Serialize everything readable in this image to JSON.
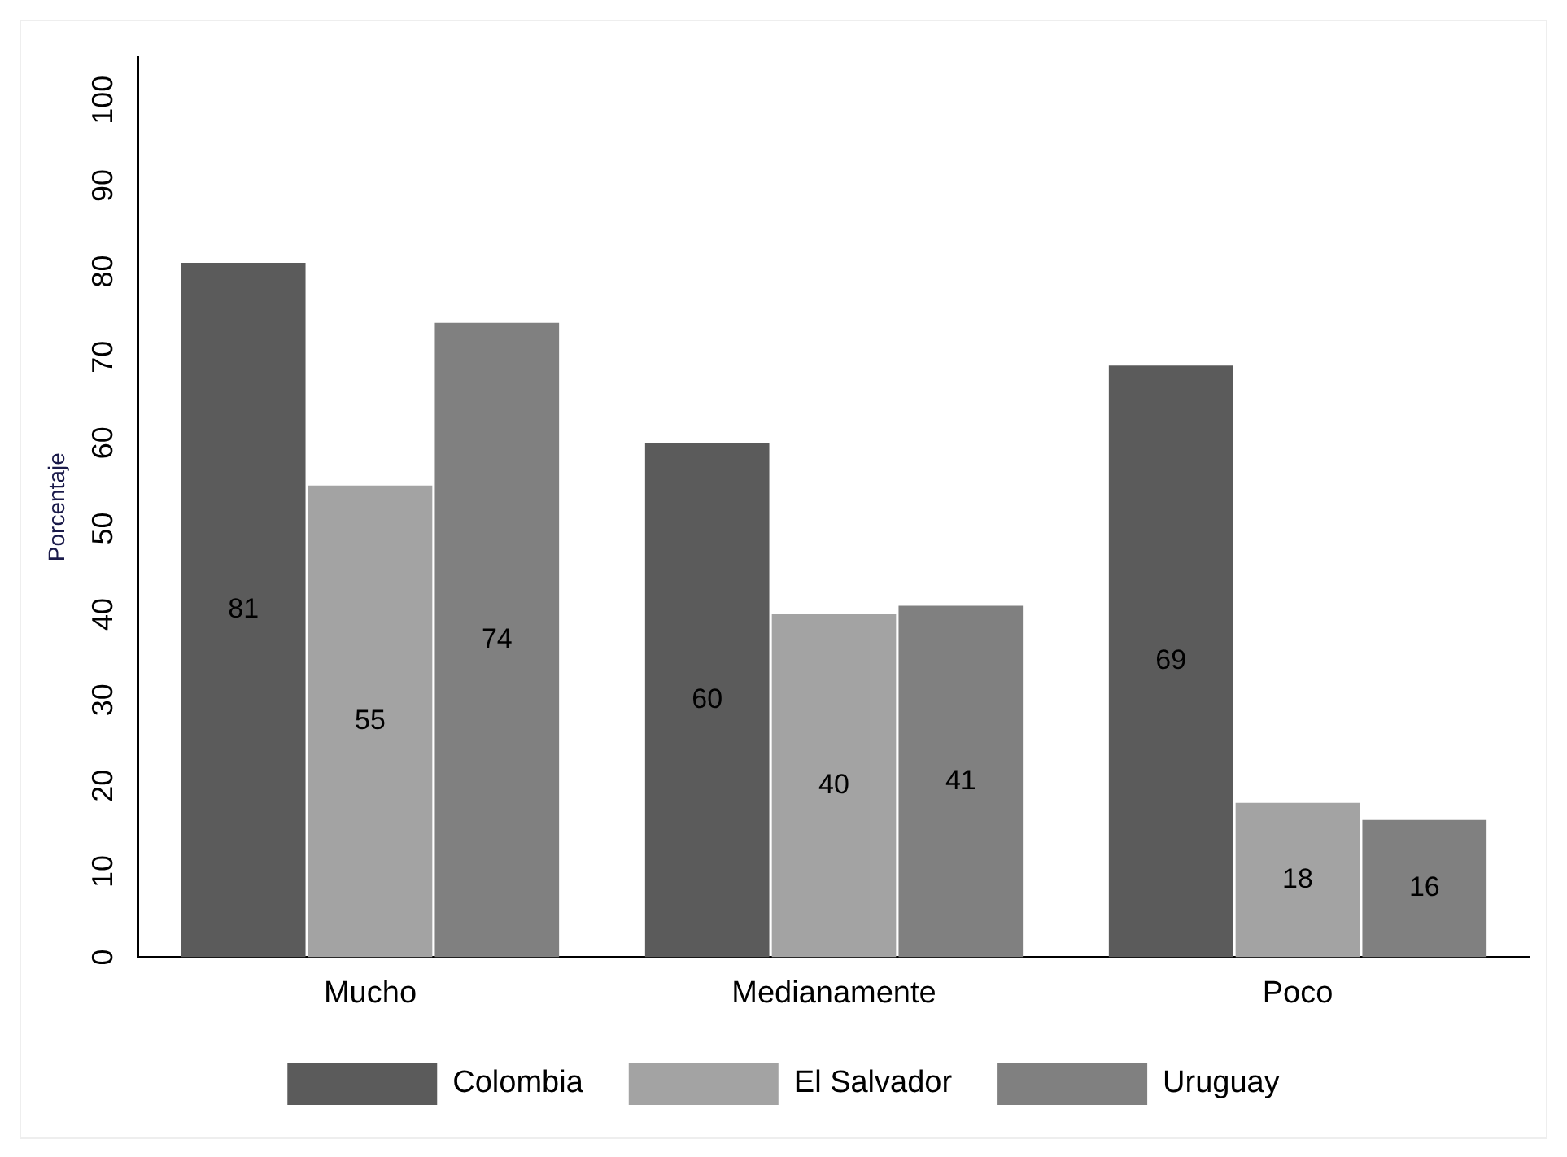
{
  "chart_data": {
    "type": "bar",
    "ylabel": "Porcentaje",
    "categories": [
      "Mucho",
      "Medianamente",
      "Poco"
    ],
    "series": [
      {
        "name": "Colombia",
        "color": "#5b5b5b",
        "values": [
          81,
          60,
          69
        ]
      },
      {
        "name": "El Salvador",
        "color": "#a3a3a3",
        "values": [
          55,
          40,
          18
        ]
      },
      {
        "name": "Uruguay",
        "color": "#808080",
        "values": [
          74,
          41,
          16
        ]
      }
    ],
    "ylim": [
      0,
      105
    ],
    "yticks": [
      0,
      10,
      20,
      30,
      40,
      50,
      60,
      70,
      80,
      90,
      100
    ],
    "grid": false,
    "legend": "bottom",
    "data_labels": true
  }
}
